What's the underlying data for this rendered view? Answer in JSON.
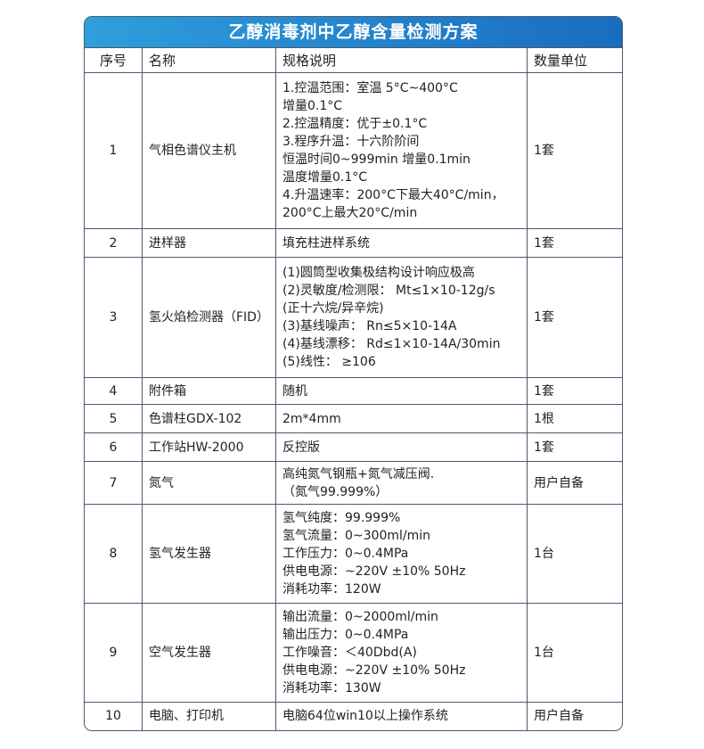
{
  "title": "乙醇消毒剂中乙醇含量检测方案",
  "headers": [
    "序号",
    "名称",
    "规格说明",
    "数量单位"
  ],
  "rows": [
    {
      "no": "1",
      "name": "气相色谱仪主机",
      "spec": [
        "1.控温范围：室温 5°C~400°C",
        "增量0.1°C",
        "2.控温精度：优于±0.1°C",
        "3.程序升温：十六阶阶间",
        "恒温时间0~999min 增量0.1min",
        "温度增量0.1°C",
        "4.升温速率：200°C下最大40°C/min，",
        "200°C上最大20°C/min"
      ],
      "qty": "1套"
    },
    {
      "no": "2",
      "name": "进样器",
      "spec": [
        "填充柱进样系统"
      ],
      "qty": "1套"
    },
    {
      "no": "3",
      "name": "氢火焰检测器（FID）",
      "spec": [
        "(1)圆筒型收集极结构设计响应极高",
        "(2)灵敏度/检测限： Mt≤1×10-12g/s",
        "(正十六烷/异辛烷)",
        "(3)基线噪声： Rn≤5×10-14A",
        "(4)基线漂移： Rd≤1×10-14A/30min",
        "(5)线性： ≥106"
      ],
      "qty": "1套"
    },
    {
      "no": "4",
      "name": "附件箱",
      "spec": [
        "随机"
      ],
      "qty": "1套"
    },
    {
      "no": "5",
      "name": "色谱柱GDX-102",
      "spec": [
        "2m*4mm"
      ],
      "qty": "1根"
    },
    {
      "no": "6",
      "name": "工作站HW-2000",
      "spec": [
        "反控版"
      ],
      "qty": "1套"
    },
    {
      "no": "7",
      "name": "氮气",
      "spec": [
        "高纯氮气钢瓶+氮气减压阀.",
        "（氮气99.999%）"
      ],
      "qty": "用户自备"
    },
    {
      "no": "8",
      "name": "氢气发生器",
      "spec": [
        "氢气纯度：99.999%",
        "氢气流量：0~300ml/min",
        "工作压力：0~0.4MPa",
        "供电电源：~220V ±10% 50Hz",
        "消耗功率：120W"
      ],
      "qty": "1台"
    },
    {
      "no": "9",
      "name": "空气发生器",
      "spec": [
        "输出流量：0~2000ml/min",
        "输出压力：0~0.4MPa",
        "工作噪音：＜40Dbd(A)",
        "供电电源：~220V ±10% 50Hz",
        "消耗功率：130W"
      ],
      "qty": "1台"
    },
    {
      "no": "10",
      "name": "电脑、打印机",
      "spec": [
        "电脑64位win10以上操作系统"
      ],
      "qty": "用户自备"
    }
  ]
}
